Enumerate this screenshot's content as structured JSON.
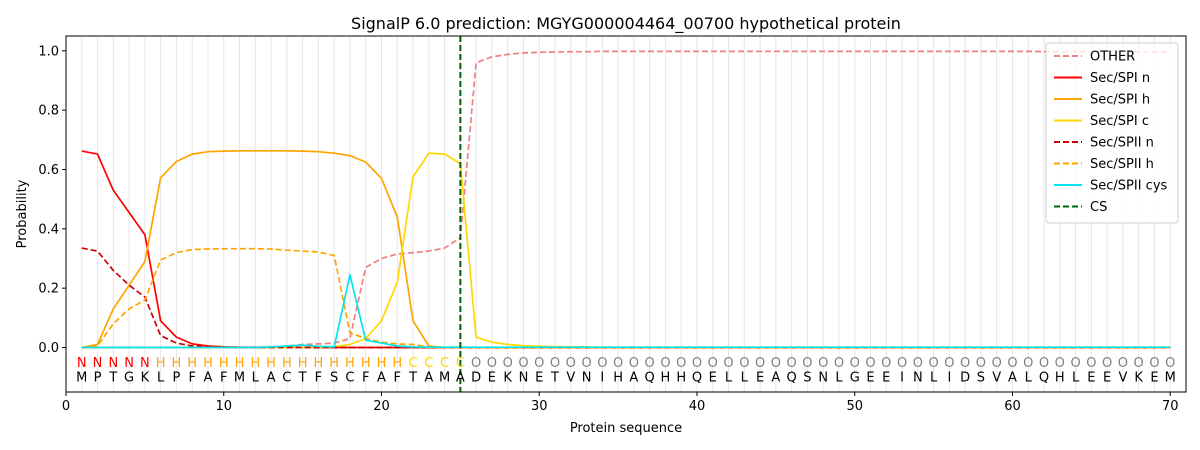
{
  "chart_data": {
    "type": "line",
    "title": "SignalP 6.0 prediction: MGYG000004464_00700 hypothetical protein",
    "xlabel": "Protein sequence",
    "ylabel": "Probability",
    "xlim": [
      0,
      71
    ],
    "ylim": [
      -0.15,
      1.05
    ],
    "x_ticks": [
      0,
      10,
      20,
      30,
      40,
      50,
      60,
      70
    ],
    "y_ticks": [
      0.0,
      0.2,
      0.4,
      0.6,
      0.8,
      1.0
    ],
    "x_tick_labels": [
      "0",
      "10",
      "20",
      "30",
      "40",
      "50",
      "60",
      "70"
    ],
    "y_tick_labels": [
      "0.0",
      "0.2",
      "0.4",
      "0.6",
      "0.8",
      "1.0"
    ],
    "sequence": [
      "M",
      "P",
      "T",
      "G",
      "K",
      "L",
      "P",
      "F",
      "A",
      "F",
      "M",
      "L",
      "A",
      "C",
      "T",
      "F",
      "S",
      "C",
      "F",
      "A",
      "F",
      "T",
      "A",
      "M",
      "A",
      "D",
      "E",
      "K",
      "N",
      "E",
      "T",
      "V",
      "N",
      "I",
      "H",
      "A",
      "Q",
      "H",
      "H",
      "Q",
      "E",
      "L",
      "L",
      "E",
      "A",
      "Q",
      "S",
      "N",
      "L",
      "G",
      "E",
      "E",
      "I",
      "N",
      "L",
      "I",
      "D",
      "S",
      "V",
      "A",
      "L",
      "Q",
      "H",
      "L",
      "E",
      "E",
      "V",
      "K",
      "E",
      "M"
    ],
    "annotation": [
      "N",
      "N",
      "N",
      "N",
      "N",
      "H",
      "H",
      "H",
      "H",
      "H",
      "H",
      "H",
      "H",
      "H",
      "H",
      "H",
      "H",
      "H",
      "H",
      "H",
      "H",
      "C",
      "C",
      "C",
      "C",
      "O",
      "O",
      "O",
      "O",
      "O",
      "O",
      "O",
      "O",
      "O",
      "O",
      "O",
      "O",
      "O",
      "O",
      "O",
      "O",
      "O",
      "O",
      "O",
      "O",
      "O",
      "O",
      "O",
      "O",
      "O",
      "O",
      "O",
      "O",
      "O",
      "O",
      "O",
      "O",
      "O",
      "O",
      "O",
      "O",
      "O",
      "O",
      "O",
      "O",
      "O",
      "O",
      "O",
      "O",
      "O"
    ],
    "annotation_colors": {
      "N": "#ff0000",
      "H": "#ffa500",
      "C": "#ffd700",
      "O": "#808080"
    },
    "cleavage_site": 25,
    "legend": "upper right",
    "grid": "vertical lines at every residue",
    "series": [
      {
        "name": "OTHER",
        "color": "#f08080",
        "dash": "dashed",
        "values": [
          0.0,
          0.0,
          0.0,
          0.0,
          0.0,
          0.0,
          0.0,
          0.0,
          0.0,
          0.0,
          0.0,
          0.0,
          0.0,
          0.005,
          0.01,
          0.012,
          0.015,
          0.03,
          0.27,
          0.3,
          0.315,
          0.32,
          0.325,
          0.335,
          0.37,
          0.96,
          0.98,
          0.988,
          0.993,
          0.995,
          0.996,
          0.997,
          0.997,
          0.998,
          0.998,
          0.998,
          0.998,
          0.998,
          0.998,
          0.998,
          0.998,
          0.998,
          0.998,
          0.998,
          0.998,
          0.998,
          0.998,
          0.998,
          0.998,
          0.998,
          0.998,
          0.998,
          0.998,
          0.998,
          0.998,
          0.998,
          0.998,
          0.998,
          0.998,
          0.998,
          0.998,
          0.997,
          0.997,
          0.997,
          0.997,
          0.997,
          0.997,
          0.997,
          0.997,
          0.997
        ]
      },
      {
        "name": "Sec/SPI n",
        "color": "#ff0000",
        "dash": "solid",
        "values": [
          0.662,
          0.652,
          0.53,
          0.455,
          0.38,
          0.09,
          0.035,
          0.012,
          0.005,
          0.002,
          0.001,
          0.001,
          0.001,
          0.001,
          0.0,
          0.0,
          0.0,
          0.0,
          0.0,
          0.0,
          0.0,
          0.0,
          0.0,
          0.0,
          0.0,
          0.0,
          0.0,
          0.0,
          0.0,
          0.0,
          0.0,
          0.0,
          0.0,
          0.0,
          0.0,
          0.0,
          0.0,
          0.0,
          0.0,
          0.0,
          0.0,
          0.0,
          0.0,
          0.0,
          0.0,
          0.0,
          0.0,
          0.0,
          0.0,
          0.0,
          0.0,
          0.0,
          0.0,
          0.0,
          0.0,
          0.0,
          0.0,
          0.0,
          0.0,
          0.0,
          0.0,
          0.0,
          0.0,
          0.0,
          0.0,
          0.0,
          0.0,
          0.0,
          0.0,
          0.0
        ]
      },
      {
        "name": "Sec/SPI h",
        "color": "#ffa500",
        "dash": "solid",
        "values": [
          0.0,
          0.01,
          0.13,
          0.21,
          0.29,
          0.572,
          0.627,
          0.652,
          0.66,
          0.662,
          0.663,
          0.663,
          0.663,
          0.663,
          0.662,
          0.66,
          0.655,
          0.647,
          0.625,
          0.57,
          0.44,
          0.09,
          0.005,
          0.0,
          0.0,
          0.0,
          0.0,
          0.0,
          0.0,
          0.0,
          0.0,
          0.0,
          0.0,
          0.0,
          0.0,
          0.0,
          0.0,
          0.0,
          0.0,
          0.0,
          0.0,
          0.0,
          0.0,
          0.0,
          0.0,
          0.0,
          0.0,
          0.0,
          0.0,
          0.0,
          0.0,
          0.0,
          0.0,
          0.0,
          0.0,
          0.0,
          0.0,
          0.0,
          0.0,
          0.0,
          0.0,
          0.0,
          0.0,
          0.0,
          0.0,
          0.0,
          0.0,
          0.0,
          0.0,
          0.0
        ]
      },
      {
        "name": "Sec/SPI c",
        "color": "#ffd700",
        "dash": "solid",
        "values": [
          0.0,
          0.0,
          0.0,
          0.0,
          0.0,
          0.0,
          0.0,
          0.0,
          0.0,
          0.0,
          0.0,
          0.0,
          0.0,
          0.0,
          0.0,
          0.0,
          0.003,
          0.01,
          0.03,
          0.09,
          0.22,
          0.575,
          0.655,
          0.652,
          0.62,
          0.035,
          0.018,
          0.01,
          0.006,
          0.004,
          0.003,
          0.002,
          0.002,
          0.001,
          0.001,
          0.001,
          0.001,
          0.001,
          0.001,
          0.001,
          0.001,
          0.001,
          0.001,
          0.001,
          0.001,
          0.001,
          0.001,
          0.001,
          0.001,
          0.001,
          0.001,
          0.001,
          0.001,
          0.001,
          0.001,
          0.001,
          0.001,
          0.001,
          0.001,
          0.001,
          0.001,
          0.001,
          0.001,
          0.001,
          0.001,
          0.001,
          0.001,
          0.001,
          0.001,
          0.001
        ]
      },
      {
        "name": "Sec/SPII n",
        "color": "#cc0000",
        "dash": "dashed",
        "values": [
          0.335,
          0.325,
          0.26,
          0.21,
          0.17,
          0.04,
          0.015,
          0.005,
          0.002,
          0.001,
          0.0,
          0.0,
          0.0,
          0.0,
          0.0,
          0.0,
          0.0,
          0.0,
          0.0,
          0.0,
          0.0,
          0.0,
          0.0,
          0.0,
          0.0,
          0.0,
          0.0,
          0.0,
          0.0,
          0.0,
          0.0,
          0.0,
          0.0,
          0.0,
          0.0,
          0.0,
          0.0,
          0.0,
          0.0,
          0.0,
          0.0,
          0.0,
          0.0,
          0.0,
          0.0,
          0.0,
          0.0,
          0.0,
          0.0,
          0.0,
          0.0,
          0.0,
          0.0,
          0.0,
          0.0,
          0.0,
          0.0,
          0.0,
          0.0,
          0.0,
          0.0,
          0.0,
          0.0,
          0.0,
          0.0,
          0.0,
          0.0,
          0.0,
          0.0,
          0.0
        ]
      },
      {
        "name": "Sec/SPII h",
        "color": "#ffa500",
        "dash": "dashed",
        "values": [
          0.0,
          0.005,
          0.08,
          0.13,
          0.16,
          0.295,
          0.32,
          0.33,
          0.332,
          0.333,
          0.333,
          0.333,
          0.332,
          0.328,
          0.325,
          0.322,
          0.31,
          0.05,
          0.03,
          0.018,
          0.012,
          0.01,
          0.002,
          0.0,
          0.0,
          0.0,
          0.0,
          0.0,
          0.0,
          0.0,
          0.0,
          0.0,
          0.0,
          0.0,
          0.0,
          0.0,
          0.0,
          0.0,
          0.0,
          0.0,
          0.0,
          0.0,
          0.0,
          0.0,
          0.0,
          0.0,
          0.0,
          0.0,
          0.0,
          0.0,
          0.0,
          0.0,
          0.0,
          0.0,
          0.0,
          0.0,
          0.0,
          0.0,
          0.0,
          0.0,
          0.0,
          0.0,
          0.0,
          0.0,
          0.0,
          0.0,
          0.0,
          0.0,
          0.0,
          0.0
        ]
      },
      {
        "name": "Sec/SPII cys",
        "color": "#00e5ee",
        "dash": "solid",
        "values": [
          0.0,
          0.0,
          0.0,
          0.0,
          0.0,
          0.0,
          0.0,
          0.0,
          0.0,
          0.0,
          0.0,
          0.0,
          0.002,
          0.005,
          0.008,
          0.004,
          0.002,
          0.245,
          0.025,
          0.015,
          0.005,
          0.002,
          0.001,
          0.001,
          0.001,
          0.001,
          0.001,
          0.001,
          0.001,
          0.001,
          0.001,
          0.001,
          0.001,
          0.001,
          0.001,
          0.001,
          0.001,
          0.001,
          0.001,
          0.001,
          0.001,
          0.001,
          0.001,
          0.001,
          0.001,
          0.001,
          0.001,
          0.001,
          0.001,
          0.001,
          0.001,
          0.001,
          0.001,
          0.001,
          0.001,
          0.001,
          0.001,
          0.001,
          0.001,
          0.001,
          0.001,
          0.001,
          0.001,
          0.001,
          0.001,
          0.001,
          0.001,
          0.001,
          0.001,
          0.001
        ]
      },
      {
        "name": "CS",
        "color": "#006400",
        "dash": "dashed",
        "type": "vline",
        "x": 25
      }
    ]
  }
}
